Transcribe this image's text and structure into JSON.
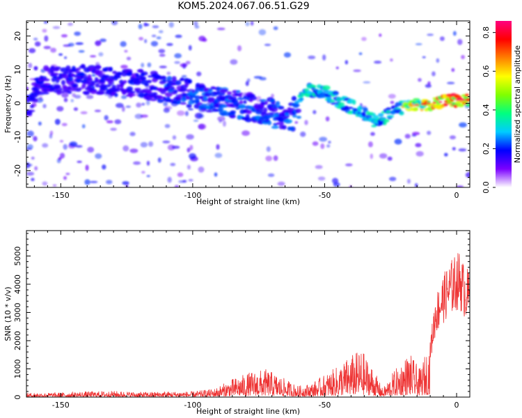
{
  "figure": {
    "title": "KOM5.2024.067.06.51.G29"
  },
  "chart_data": [
    {
      "type": "heatmap",
      "xlabel": "Height of straight line (km)",
      "ylabel": "Frequency (Hz)",
      "xlim": [
        -163,
        5
      ],
      "ylim": [
        -25,
        24.5
      ],
      "x_ticks": [
        -150,
        -100,
        -50,
        0
      ],
      "y_ticks": [
        -20,
        -10,
        0,
        10,
        20
      ],
      "colorbar": {
        "label": "Normalized spectral amplitude",
        "range": [
          0.0,
          0.86
        ],
        "ticks": [
          0.0,
          0.2,
          0.4,
          0.6,
          0.8
        ],
        "colormap": [
          "#ffffff",
          "#7b00ff",
          "#0000ff",
          "#00ccff",
          "#00ff80",
          "#80ff00",
          "#ffff00",
          "#ff8000",
          "#ff0000",
          "#ff0080"
        ]
      },
      "ridge": {
        "description_points": [
          {
            "x": -160,
            "y": 7
          },
          {
            "x": -140,
            "y": 7
          },
          {
            "x": -120,
            "y": 6
          },
          {
            "x": -110,
            "y": 4
          },
          {
            "x": -100,
            "y": 3
          },
          {
            "x": -90,
            "y": 1
          },
          {
            "x": -80,
            "y": -1
          },
          {
            "x": -70,
            "y": -3
          },
          {
            "x": -62,
            "y": -4
          },
          {
            "x": -58,
            "y": 4
          },
          {
            "x": -50,
            "y": 3
          },
          {
            "x": -45,
            "y": 1
          },
          {
            "x": -40,
            "y": -1
          },
          {
            "x": -35,
            "y": -3
          },
          {
            "x": -30,
            "y": -6
          },
          {
            "x": -25,
            "y": -3
          },
          {
            "x": -20,
            "y": -1
          },
          {
            "x": -10,
            "y": 0
          },
          {
            "x": 0,
            "y": 1
          },
          {
            "x": 5,
            "y": 1
          }
        ],
        "peak_amplitude": 0.86
      }
    },
    {
      "type": "line",
      "xlabel": "Height of straight line (km)",
      "ylabel": "SNR (10 * v/v)",
      "xlim": [
        -163,
        5
      ],
      "ylim": [
        0,
        5900
      ],
      "x_ticks": [
        -150,
        -100,
        -50,
        0
      ],
      "y_ticks": [
        0,
        1000,
        2000,
        3000,
        4000,
        5000
      ],
      "color": "#ee3333",
      "envelope": [
        {
          "x": -163,
          "y": 150
        },
        {
          "x": -150,
          "y": 160
        },
        {
          "x": -140,
          "y": 200
        },
        {
          "x": -130,
          "y": 220
        },
        {
          "x": -120,
          "y": 180
        },
        {
          "x": -110,
          "y": 200
        },
        {
          "x": -100,
          "y": 200
        },
        {
          "x": -92,
          "y": 300
        },
        {
          "x": -85,
          "y": 650
        },
        {
          "x": -78,
          "y": 900
        },
        {
          "x": -72,
          "y": 1000
        },
        {
          "x": -66,
          "y": 700
        },
        {
          "x": -60,
          "y": 400
        },
        {
          "x": -55,
          "y": 500
        },
        {
          "x": -50,
          "y": 800
        },
        {
          "x": -45,
          "y": 1100
        },
        {
          "x": -40,
          "y": 1500
        },
        {
          "x": -36,
          "y": 1700
        },
        {
          "x": -32,
          "y": 1100
        },
        {
          "x": -28,
          "y": 300
        },
        {
          "x": -24,
          "y": 900
        },
        {
          "x": -18,
          "y": 1600
        },
        {
          "x": -14,
          "y": 1000
        },
        {
          "x": -10,
          "y": 2000
        },
        {
          "x": -8,
          "y": 3500
        },
        {
          "x": -5,
          "y": 4200
        },
        {
          "x": -2,
          "y": 4700
        },
        {
          "x": 1,
          "y": 5000
        },
        {
          "x": 3,
          "y": 4500
        },
        {
          "x": 5,
          "y": 4300
        }
      ]
    }
  ]
}
